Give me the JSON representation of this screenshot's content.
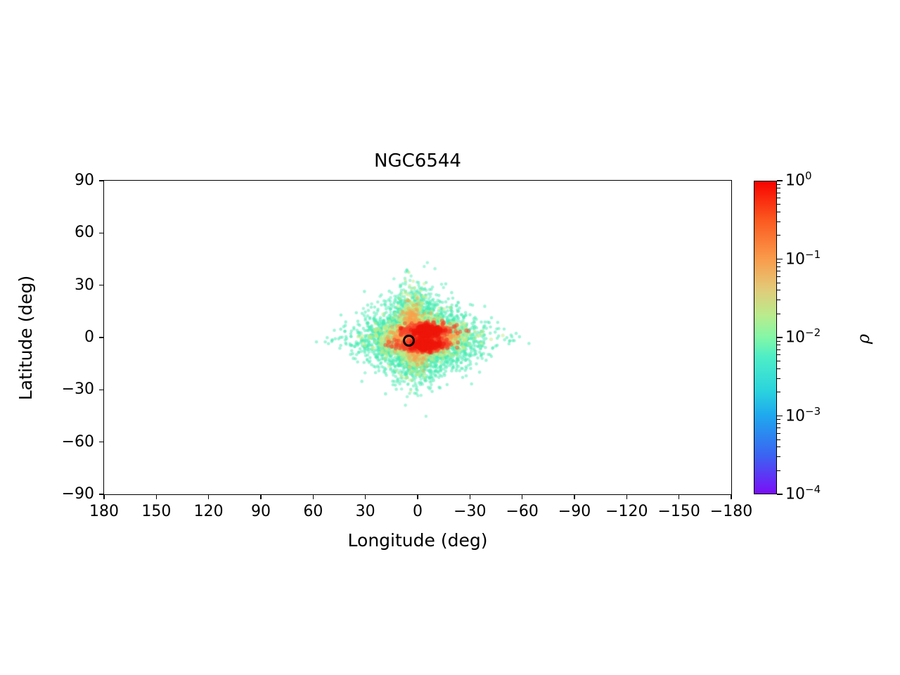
{
  "chart_data": {
    "type": "scatter",
    "title": "NGC6544",
    "xlabel": "Longitude (deg)",
    "ylabel": "Latitude (deg)",
    "xlim": [
      180,
      -180
    ],
    "ylim": [
      -90,
      90
    ],
    "grid": false,
    "x_ticks": [
      180,
      150,
      120,
      90,
      60,
      30,
      0,
      -30,
      -60,
      -90,
      -120,
      -150,
      -180
    ],
    "y_ticks": [
      90,
      60,
      30,
      0,
      -30,
      -60,
      -90
    ],
    "marker": {
      "name": "cluster-position",
      "lon": 5,
      "lat": -2,
      "edge_color": "#000000"
    },
    "colorbar": {
      "label": "ρ",
      "scale": "log",
      "tick_exponents": [
        "0",
        "−1",
        "−2",
        "−3",
        "−4"
      ],
      "decades": 4,
      "colormap": "rainbow",
      "gradient_stops": [
        {
          "pos": 0.0,
          "color": "#f80300"
        },
        {
          "pos": 0.125,
          "color": "#fb5a20"
        },
        {
          "pos": 0.25,
          "color": "#f99c4c"
        },
        {
          "pos": 0.345,
          "color": "#e2ca79"
        },
        {
          "pos": 0.43,
          "color": "#b9ec8d"
        },
        {
          "pos": 0.5,
          "color": "#83f7a7"
        },
        {
          "pos": 0.56,
          "color": "#4feec6"
        },
        {
          "pos": 0.67,
          "color": "#2bd4dd"
        },
        {
          "pos": 0.75,
          "color": "#1fa8ee"
        },
        {
          "pos": 0.875,
          "color": "#3a65f2"
        },
        {
          "pos": 1.0,
          "color": "#7a0ff7"
        }
      ]
    },
    "density_model": {
      "seed": 7,
      "components": [
        {
          "name": "halo-broad",
          "n": 2600,
          "cx": -1,
          "cy": -0.5,
          "sx": 17.5,
          "sy": 10,
          "taper": 52,
          "color": "#46ecb2",
          "alpha": 0.5,
          "r": 2.3
        },
        {
          "name": "halo-vertical",
          "n": 800,
          "cx": 1,
          "cy": 1,
          "sx": 9,
          "sy": 12.5,
          "taper": 0,
          "color": "#46ecb2",
          "alpha": 0.45,
          "r": 2.3
        },
        {
          "name": "halo-upper-plume",
          "n": 280,
          "cx": 2.5,
          "cy": 13,
          "sx": 5.5,
          "sy": 8,
          "taper": 0,
          "color": "#46ecb2",
          "alpha": 0.45,
          "r": 2.2
        },
        {
          "name": "halo-lower-plume",
          "n": 200,
          "cx": 0,
          "cy": -13,
          "sx": 6,
          "sy": 7,
          "taper": 0,
          "color": "#46ecb2",
          "alpha": 0.45,
          "r": 2.2
        },
        {
          "name": "mid-green",
          "n": 1500,
          "cx": -2,
          "cy": 0,
          "sx": 11,
          "sy": 5.5,
          "taper": 40,
          "color": "#c3ec85",
          "alpha": 0.5,
          "r": 2.6
        },
        {
          "name": "green-upper-plume",
          "n": 420,
          "cx": 2.5,
          "cy": 9,
          "sx": 4,
          "sy": 8,
          "taper": 0,
          "color": "#c3ec85",
          "alpha": 0.5,
          "r": 2.4
        },
        {
          "name": "green-lower-plume",
          "n": 230,
          "cx": 1,
          "cy": -9,
          "sx": 4.5,
          "sy": 6,
          "taper": 0,
          "color": "#c3ec85",
          "alpha": 0.45,
          "r": 2.4
        },
        {
          "name": "orange-band",
          "n": 950,
          "cx": -3.5,
          "cy": 0,
          "sx": 7.5,
          "sy": 3.4,
          "taper": 30,
          "color": "#f9a04c",
          "alpha": 0.5,
          "r": 2.8
        },
        {
          "name": "orange-upper-plume",
          "n": 200,
          "cx": 3,
          "cy": 7.5,
          "sx": 2.6,
          "sy": 5.5,
          "taper": 0,
          "color": "#f9a04c",
          "alpha": 0.4,
          "r": 2.6
        },
        {
          "name": "orange-lower-plume",
          "n": 110,
          "cx": 1,
          "cy": -8,
          "sx": 2.8,
          "sy": 4.5,
          "taper": 0,
          "color": "#f9a04c",
          "alpha": 0.35,
          "r": 2.6
        },
        {
          "name": "red-band-upper",
          "n": 560,
          "cx": -4,
          "cy": 3.9,
          "sx": 6.2,
          "sy": 1.9,
          "taper": 26,
          "color": "#f5472b",
          "alpha": 0.55,
          "r": 2.9
        },
        {
          "name": "red-band-lower",
          "n": 500,
          "cx": -3,
          "cy": -4.3,
          "sx": 6.6,
          "sy": 1.8,
          "taper": 26,
          "color": "#f5472b",
          "alpha": 0.55,
          "r": 2.9
        },
        {
          "name": "red-core-upper",
          "n": 300,
          "cx": -5,
          "cy": 3.6,
          "sx": 3.4,
          "sy": 1.5,
          "taper": 0,
          "color": "#ee150a",
          "alpha": 0.6,
          "r": 3
        },
        {
          "name": "red-core-lower",
          "n": 220,
          "cx": -4,
          "cy": -4,
          "sx": 3.6,
          "sy": 1.4,
          "taper": 0,
          "color": "#ee150a",
          "alpha": 0.6,
          "r": 3
        }
      ]
    }
  }
}
